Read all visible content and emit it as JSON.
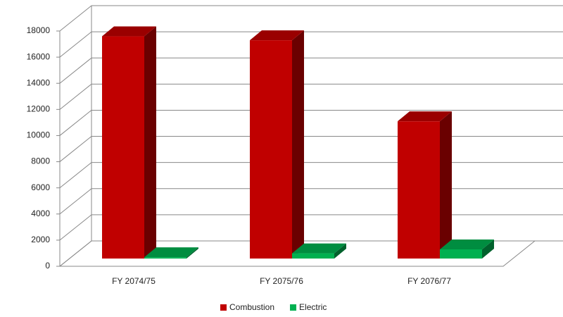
{
  "chart_data": {
    "type": "bar3d",
    "categories": [
      "FY 2074/75",
      "FY 2075/76",
      "FY 2076/77"
    ],
    "series": [
      {
        "name": "Combustion",
        "color": "#c00000",
        "values": [
          17000,
          16700,
          10500
        ]
      },
      {
        "name": "Electric",
        "color": "#00b050",
        "values": [
          100,
          400,
          700
        ]
      }
    ],
    "ylim": [
      0,
      18000
    ],
    "yticks": [
      0,
      2000,
      4000,
      6000,
      8000,
      10000,
      12000,
      14000,
      16000,
      18000
    ],
    "grid": true,
    "legend": "bottom"
  }
}
